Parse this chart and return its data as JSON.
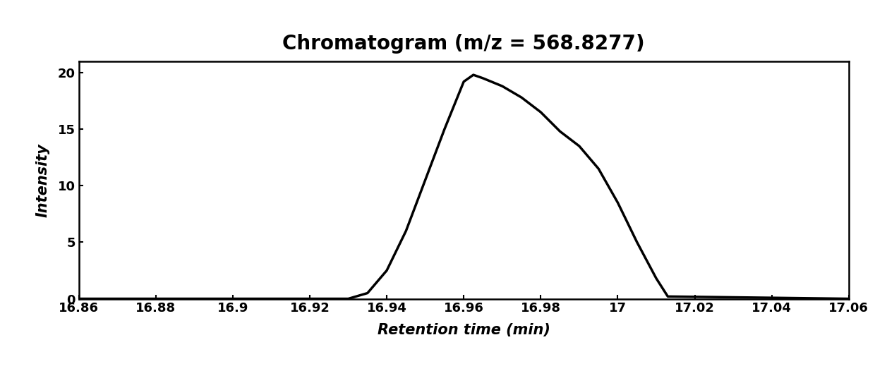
{
  "title": "Chromatogram (m/z = 568.8277)",
  "xlabel": "Retention time (min)",
  "ylabel": "Intensity",
  "xlim": [
    16.86,
    17.06
  ],
  "ylim": [
    0,
    21
  ],
  "xticks": [
    16.86,
    16.88,
    16.9,
    16.92,
    16.94,
    16.96,
    16.98,
    17.0,
    17.02,
    17.04,
    17.06
  ],
  "xtick_labels": [
    "16.86",
    "16.88",
    "16.9",
    "16.92",
    "16.94",
    "16.96",
    "16.98",
    "17",
    "17.02",
    "17.04",
    "17.06"
  ],
  "yticks": [
    0,
    5,
    10,
    15,
    20
  ],
  "line_color": "#000000",
  "line_width": 2.5,
  "bg_color": "#ffffff",
  "peak_x": [
    16.86,
    16.92,
    16.93,
    16.935,
    16.94,
    16.945,
    16.95,
    16.955,
    16.96,
    16.9625,
    16.965,
    16.97,
    16.975,
    16.98,
    16.985,
    16.99,
    16.995,
    17.0,
    17.005,
    17.01,
    17.013,
    17.06
  ],
  "peak_y": [
    0,
    0,
    0.0,
    0.5,
    2.5,
    6.0,
    10.5,
    15.0,
    19.2,
    19.8,
    19.5,
    18.8,
    17.8,
    16.5,
    14.8,
    13.5,
    11.5,
    8.5,
    5.0,
    1.8,
    0.2,
    0
  ],
  "title_fontsize": 20,
  "axis_label_fontsize": 15,
  "tick_fontsize": 13
}
